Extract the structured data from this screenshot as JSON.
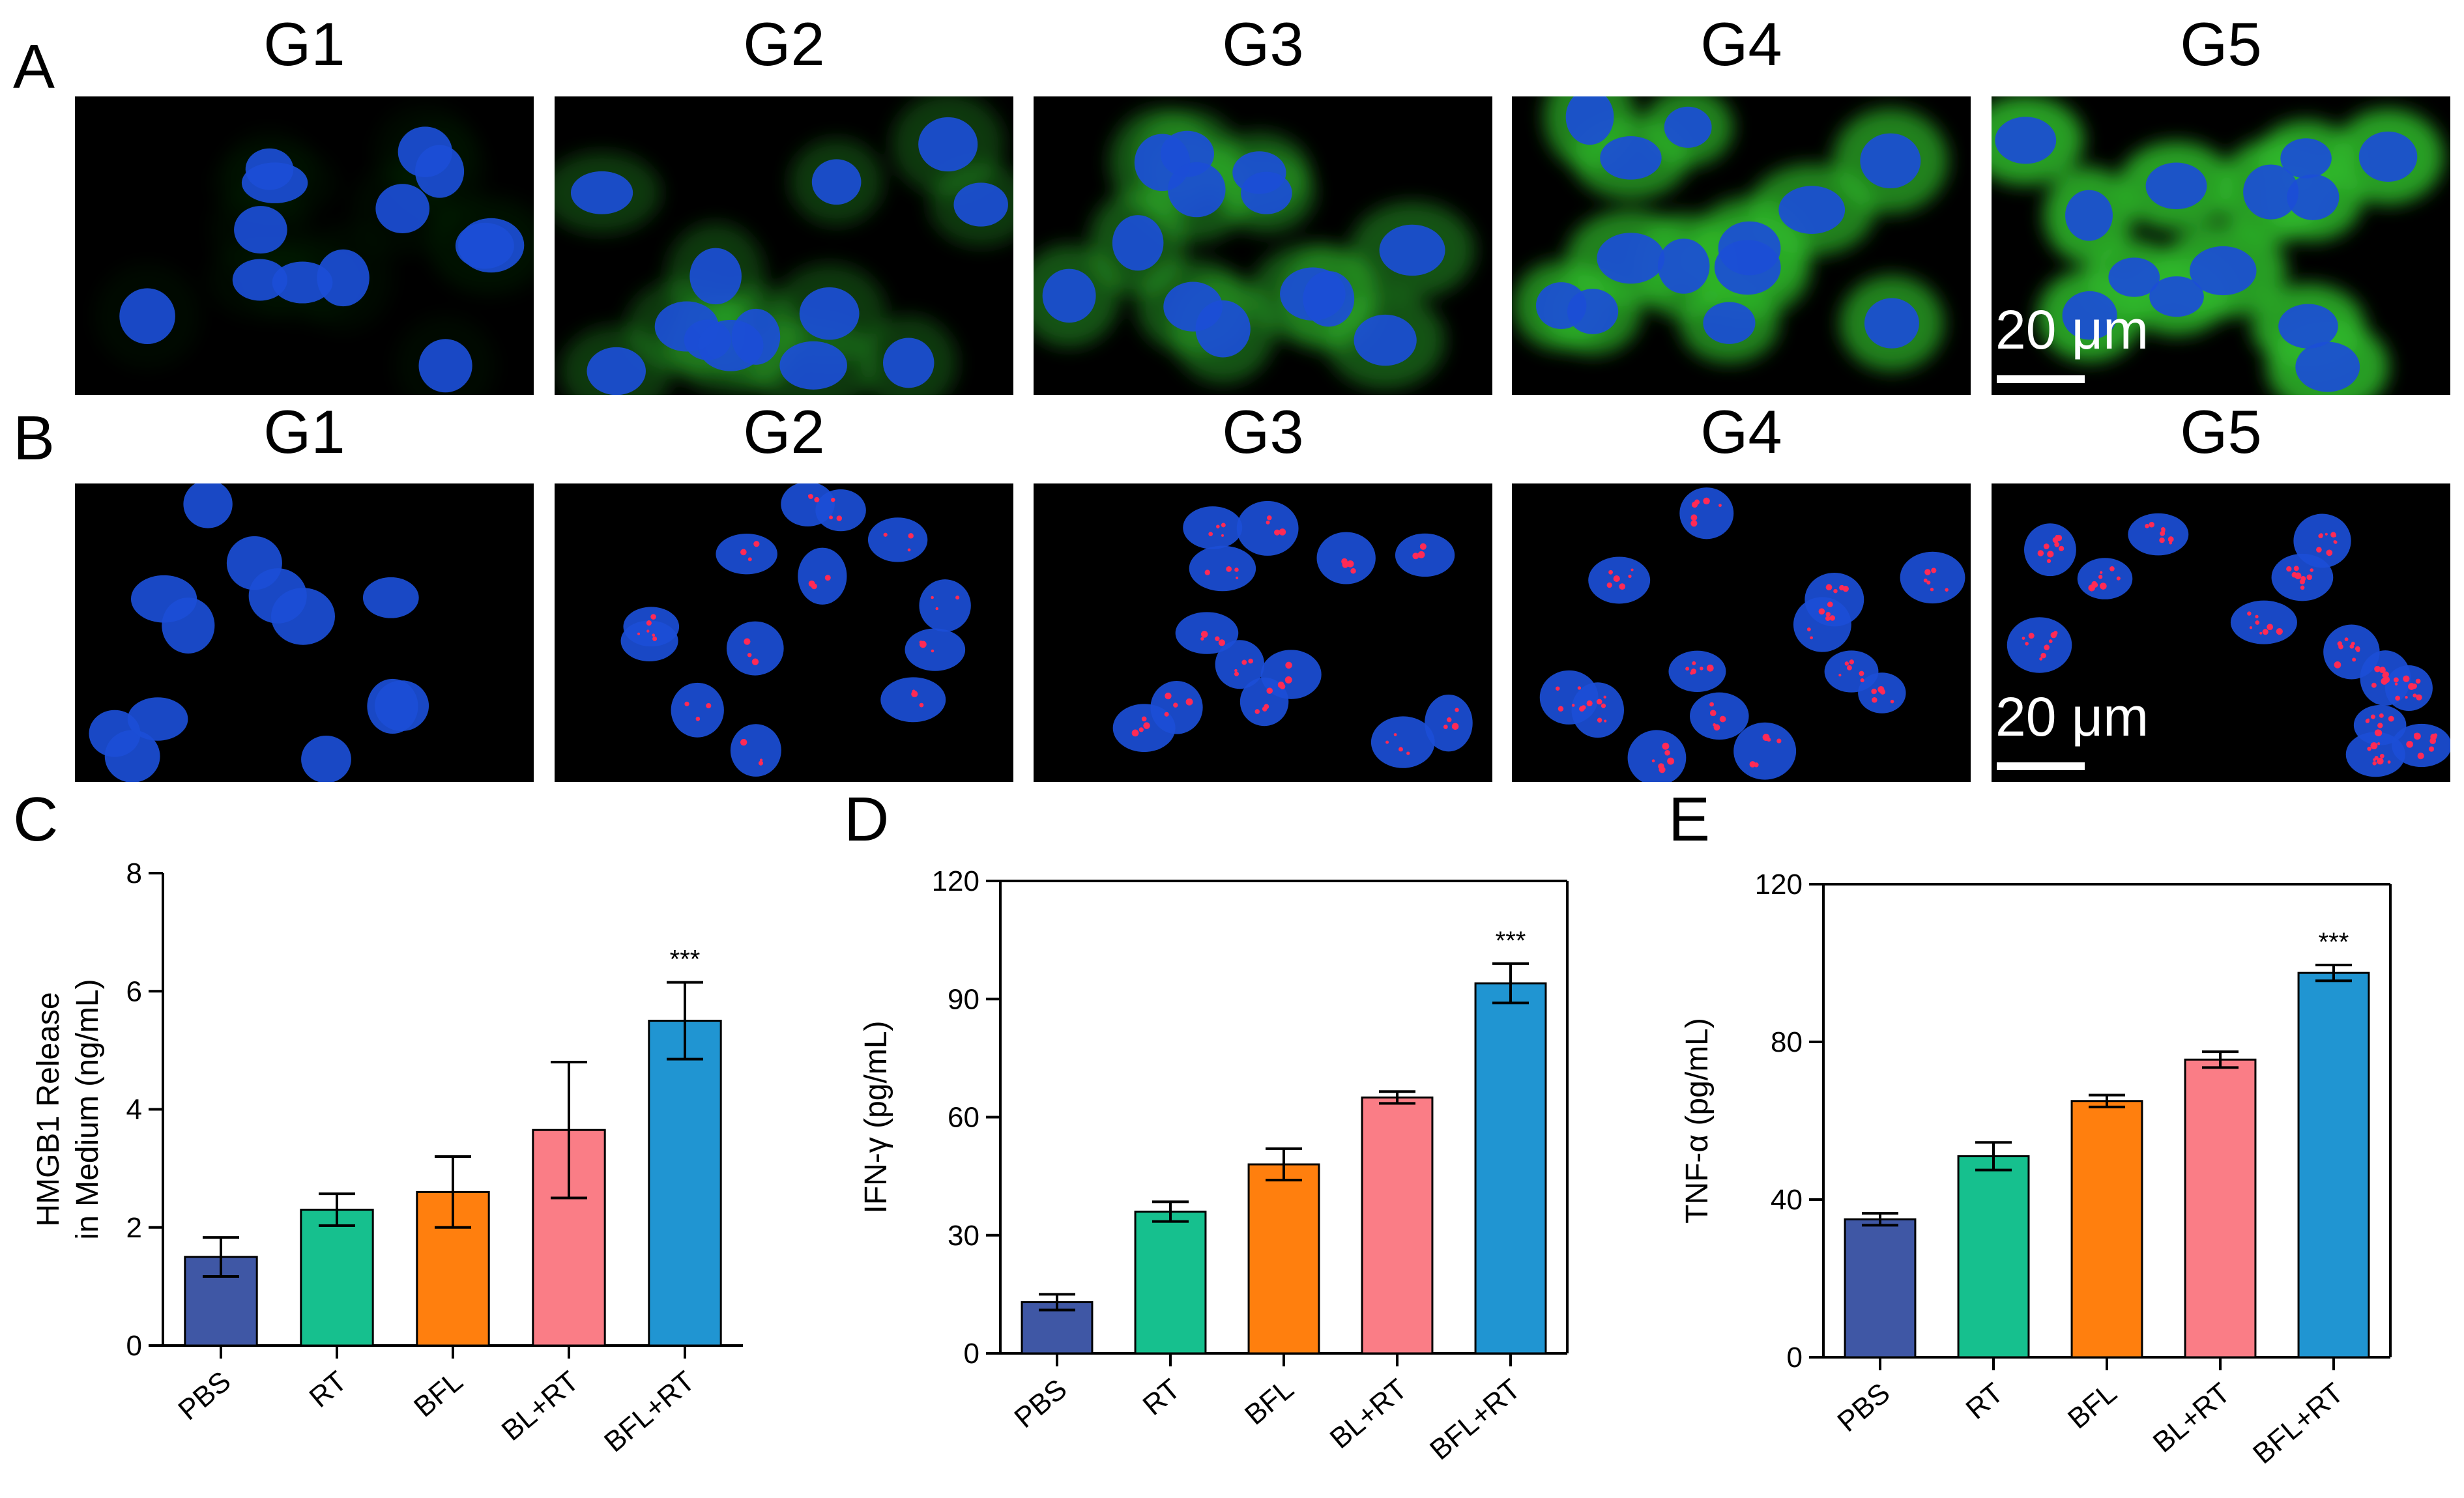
{
  "panel_letters": {
    "a": "A",
    "b": "B",
    "c": "C",
    "d": "D",
    "e": "E"
  },
  "image_rows": [
    {
      "letter": "A",
      "stain": "green",
      "groups": [
        "G1",
        "G2",
        "G3",
        "G4",
        "G5"
      ],
      "scale_bar_label": "20 μm"
    },
    {
      "letter": "B",
      "stain": "red",
      "groups": [
        "G1",
        "G2",
        "G3",
        "G4",
        "G5"
      ],
      "scale_bar_label": "20 μm"
    }
  ],
  "colors": {
    "PBS": "#3f57a5",
    "RT": "#16c08e",
    "BFL": "#ff7f0e",
    "BL+RT": "#fa7d86",
    "BFL+RT": "#2095d2",
    "nucleus": "#1b4ed6",
    "green_stain": "#2fb82a",
    "red_stain": "#ff2a55"
  },
  "chart_data": [
    {
      "type": "bar",
      "panel": "C",
      "categories": [
        "PBS",
        "RT",
        "BFL",
        "BL+RT",
        "BFL+RT"
      ],
      "values": [
        1.5,
        2.3,
        2.6,
        3.65,
        5.5
      ],
      "errors": [
        0.33,
        0.27,
        0.6,
        1.15,
        0.65
      ],
      "significance": [
        "",
        "",
        "",
        "",
        "***"
      ],
      "title": "",
      "xlabel": "",
      "ylabel_lines": [
        "HMGB1 Release",
        "in Medium (ng/mL)"
      ],
      "ylim": [
        0,
        8
      ],
      "yticks": [
        0,
        2,
        4,
        6,
        8
      ],
      "grid": false,
      "box": "left-bottom"
    },
    {
      "type": "bar",
      "panel": "D",
      "categories": [
        "PBS",
        "RT",
        "BFL",
        "BL+RT",
        "BFL+RT"
      ],
      "values": [
        13,
        36,
        48,
        65,
        94
      ],
      "errors": [
        2,
        2.5,
        4,
        1.5,
        5
      ],
      "significance": [
        "",
        "",
        "",
        "",
        "***"
      ],
      "title": "",
      "xlabel": "",
      "ylabel_lines": [
        "IFN-γ (pg/mL)"
      ],
      "ylim": [
        0,
        120
      ],
      "yticks": [
        0,
        30,
        60,
        90,
        120
      ],
      "grid": false,
      "box": "full"
    },
    {
      "type": "bar",
      "panel": "E",
      "categories": [
        "PBS",
        "RT",
        "BFL",
        "BL+RT",
        "BFL+RT"
      ],
      "values": [
        35,
        51,
        65,
        75.5,
        97.5
      ],
      "errors": [
        1.5,
        3.5,
        1.5,
        2,
        2
      ],
      "significance": [
        "",
        "",
        "",
        "",
        "***"
      ],
      "title": "",
      "xlabel": "",
      "ylabel_lines": [
        "TNF-α (pg/mL)"
      ],
      "ylim": [
        0,
        120
      ],
      "yticks": [
        0,
        40,
        80,
        120
      ],
      "grid": false,
      "box": "full"
    }
  ]
}
